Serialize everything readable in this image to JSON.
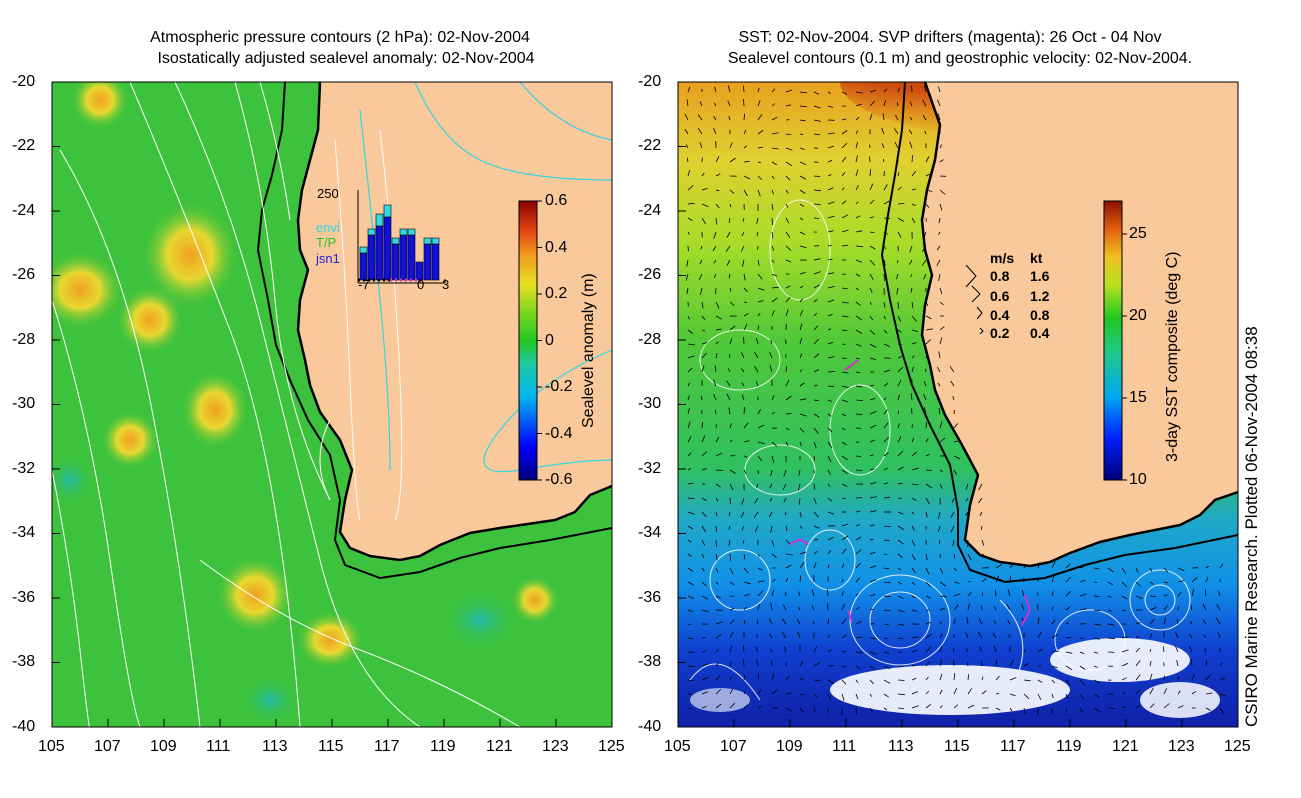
{
  "left_panel": {
    "title_line1": "Atmospheric pressure contours (2 hPa): 02-Nov-2004",
    "title_line2": "Isostatically adjusted sealevel anomaly: 02-Nov-2004",
    "y_ticks": [
      "-20",
      "-22",
      "-24",
      "-26",
      "-28",
      "-30",
      "-32",
      "-34",
      "-36",
      "-38",
      "-40"
    ],
    "x_ticks": [
      "105",
      "107",
      "109",
      "111",
      "113",
      "115",
      "117",
      "119",
      "121",
      "123",
      "125"
    ],
    "colorbar": {
      "label": "Sealevel anomaly (m)",
      "ticks": [
        "0.6",
        "0.4",
        "0.2",
        "0",
        "-0.2",
        "-0.4",
        "-0.6"
      ],
      "range": [
        -0.6,
        0.6
      ]
    },
    "inset": {
      "y_max_label": "250",
      "legend": [
        "envi",
        "T/P",
        "jsn1"
      ],
      "x_ticks": [
        "-7",
        "0",
        "3"
      ],
      "bars_total": [
        3,
        5,
        6,
        7,
        4,
        5,
        5,
        2,
        4,
        4
      ],
      "bars_top": [
        1,
        1,
        2,
        2,
        1,
        1,
        1,
        0,
        1,
        1
      ],
      "x_range": [
        -7,
        3
      ]
    }
  },
  "right_panel": {
    "title_line1": "SST: 02-Nov-2004. SVP drifters (magenta): 26 Oct - 04 Nov",
    "title_line2": "Sealevel contours (0.1 m) and geostrophic velocity: 02-Nov-2004.",
    "y_ticks": [
      "-20",
      "-22",
      "-24",
      "-26",
      "-28",
      "-30",
      "-32",
      "-34",
      "-36",
      "-38",
      "-40"
    ],
    "x_ticks": [
      "105",
      "107",
      "109",
      "111",
      "113",
      "115",
      "117",
      "119",
      "121",
      "123",
      "125"
    ],
    "colorbar": {
      "label": "3-day SST composite (deg C)",
      "ticks": [
        "25",
        "20",
        "15",
        "10"
      ],
      "range": [
        10,
        27
      ]
    },
    "velocity_legend": {
      "header_ms": "m/s",
      "header_kt": "kt",
      "rows": [
        {
          "ms": "0.8",
          "kt": "1.6"
        },
        {
          "ms": "0.6",
          "kt": "1.2"
        },
        {
          "ms": "0.4",
          "kt": "0.8"
        },
        {
          "ms": "0.2",
          "kt": "0.4"
        }
      ]
    }
  },
  "credit": "CSIRO Marine Research. Plotted 06-Nov-2004 08:38",
  "colors": {
    "land": "#f9c89b",
    "ocean_green": "#3cc23c",
    "ocean_yellow": "#d8d830",
    "coast": "#000000",
    "contour_white": "#ffffff",
    "contour_cyan": "#33d6e0",
    "drifter_magenta": "#d030d0"
  }
}
